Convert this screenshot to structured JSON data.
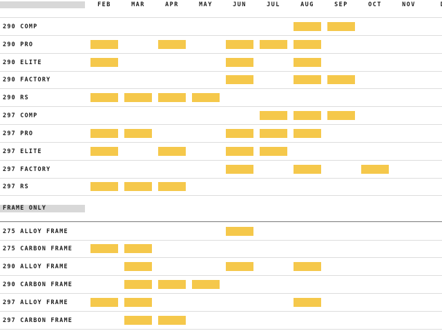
{
  "colors": {
    "availability": "#f5c84b",
    "header_band": "#d8d8d8"
  },
  "months": [
    "FEB",
    "MAR",
    "APR",
    "MAY",
    "JUN",
    "JUL",
    "AUG",
    "SEP",
    "OCT",
    "NOV",
    "D"
  ],
  "sections": [
    {
      "title": "",
      "rows": [
        {
          "name": "290 COMP",
          "months": [
            "AUG",
            "SEP"
          ]
        },
        {
          "name": "290 PRO",
          "months": [
            "FEB",
            "APR",
            "JUN",
            "JUL",
            "AUG"
          ]
        },
        {
          "name": "290 ELITE",
          "months": [
            "FEB",
            "JUN",
            "AUG"
          ]
        },
        {
          "name": "290 FACTORY",
          "months": [
            "JUN",
            "AUG",
            "SEP"
          ]
        },
        {
          "name": "290 RS",
          "months": [
            "FEB",
            "MAR",
            "APR",
            "MAY"
          ]
        },
        {
          "name": "297 COMP",
          "months": [
            "JUL",
            "AUG",
            "SEP"
          ]
        },
        {
          "name": "297 PRO",
          "months": [
            "FEB",
            "MAR",
            "JUN",
            "JUL",
            "AUG"
          ]
        },
        {
          "name": "297 ELITE",
          "months": [
            "FEB",
            "APR",
            "JUN",
            "JUL"
          ]
        },
        {
          "name": "297 FACTORY",
          "months": [
            "JUN",
            "AUG",
            "OCT"
          ]
        },
        {
          "name": "297 RS",
          "months": [
            "FEB",
            "MAR",
            "APR"
          ]
        }
      ]
    },
    {
      "title": "FRAME ONLY",
      "rows": [
        {
          "name": "275 ALLOY FRAME",
          "months": [
            "JUN"
          ]
        },
        {
          "name": "275 CARBON FRAME",
          "months": [
            "FEB",
            "MAR"
          ]
        },
        {
          "name": "290 ALLOY FRAME",
          "months": [
            "MAR",
            "JUN",
            "AUG"
          ]
        },
        {
          "name": "290 CARBON FRAME",
          "months": [
            "MAR",
            "APR",
            "MAY"
          ]
        },
        {
          "name": "297 ALLOY FRAME",
          "months": [
            "FEB",
            "MAR",
            "AUG"
          ]
        },
        {
          "name": "297 CARBON FRAME",
          "months": [
            "MAR",
            "APR"
          ]
        }
      ]
    }
  ]
}
